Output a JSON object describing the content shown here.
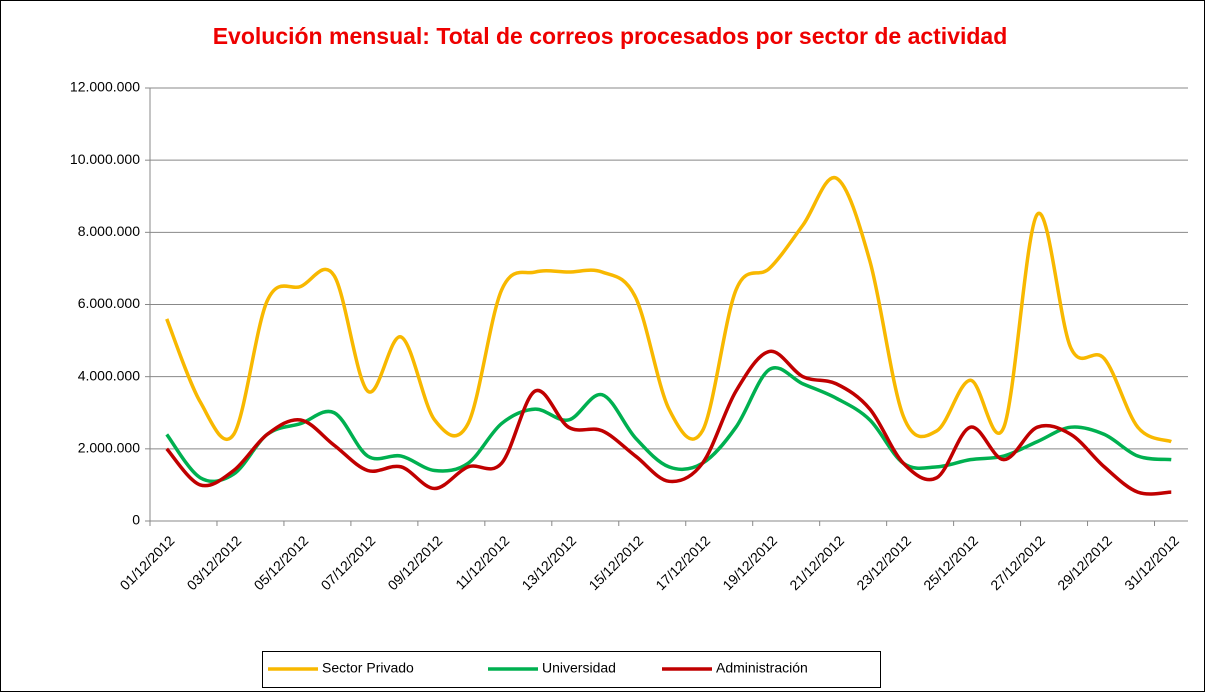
{
  "chart_data": {
    "type": "line",
    "title": "Evolución mensual: Total de correos procesados por sector de actividad",
    "categories": [
      "01/12/2012",
      null,
      "03/12/2012",
      null,
      "05/12/2012",
      null,
      "07/12/2012",
      null,
      "09/12/2012",
      null,
      "11/12/2012",
      null,
      "13/12/2012",
      null,
      "15/12/2012",
      null,
      "17/12/2012",
      null,
      "19/12/2012",
      null,
      "21/12/2012",
      null,
      "23/12/2012",
      null,
      "25/12/2012",
      null,
      "27/12/2012",
      null,
      "29/12/2012",
      null,
      "31/12/2012"
    ],
    "series": [
      {
        "name": "Sector Privado",
        "color": "#f8b800",
        "values": [
          5600000,
          3300000,
          2400000,
          6100000,
          6500000,
          6800000,
          3600000,
          5100000,
          2800000,
          2700000,
          6400000,
          6900000,
          6900000,
          6900000,
          6200000,
          3100000,
          2500000,
          6400000,
          7000000,
          8200000,
          9500000,
          7200000,
          2900000,
          2500000,
          3900000,
          2600000,
          8500000,
          4800000,
          4500000,
          2600000,
          2200000
        ]
      },
      {
        "name": "Universidad",
        "color": "#00b050",
        "values": [
          2400000,
          1200000,
          1300000,
          2400000,
          2700000,
          3000000,
          1800000,
          1800000,
          1400000,
          1600000,
          2700000,
          3100000,
          2800000,
          3500000,
          2300000,
          1500000,
          1600000,
          2600000,
          4200000,
          3800000,
          3400000,
          2800000,
          1600000,
          1500000,
          1700000,
          1800000,
          2200000,
          2600000,
          2400000,
          1800000,
          1700000
        ]
      },
      {
        "name": "Administración",
        "color": "#c00000",
        "values": [
          2000000,
          1000000,
          1400000,
          2400000,
          2800000,
          2100000,
          1400000,
          1500000,
          900000,
          1500000,
          1600000,
          3600000,
          2600000,
          2500000,
          1800000,
          1100000,
          1600000,
          3600000,
          4700000,
          4000000,
          3800000,
          3100000,
          1600000,
          1200000,
          2600000,
          1700000,
          2600000,
          2400000,
          1500000,
          800000,
          800000
        ]
      }
    ],
    "ylim": [
      0,
      12000000
    ],
    "yticks": [
      0,
      {
        "value": 2000000,
        "label": "2.000.000"
      },
      {
        "value": 4000000,
        "label": "4.000.000"
      },
      {
        "value": 6000000,
        "label": "6.000.000"
      },
      {
        "value": 8000000,
        "label": "8.000.000"
      },
      {
        "value": 10000000,
        "label": "10.000.000"
      },
      {
        "value": 12000000,
        "label": "12.000.000"
      }
    ],
    "grid": true,
    "legend": "bottom"
  }
}
